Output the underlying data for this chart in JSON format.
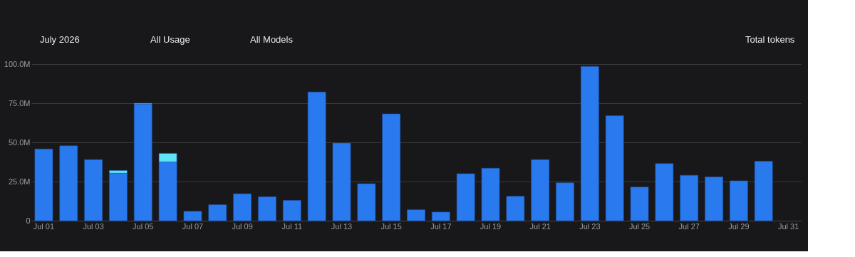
{
  "chart_data": {
    "type": "bar",
    "stacked": true,
    "categories": [
      "Jul 01",
      null,
      "Jul 03",
      null,
      "Jul 05",
      null,
      "Jul 07",
      null,
      "Jul 09",
      null,
      "Jul 11",
      null,
      "Jul 13",
      null,
      "Jul 15",
      null,
      "Jul 17",
      null,
      "Jul 19",
      null,
      "Jul 21",
      null,
      "Jul 23",
      null,
      "Jul 25",
      null,
      "Jul 27",
      null,
      "Jul 29",
      null,
      "Jul 31"
    ],
    "series": [
      {
        "color": "#2a7aef",
        "values": [
          45.8,
          47.8,
          39,
          30.3,
          74.5,
          37.5,
          6,
          10.2,
          17.2,
          15.3,
          13,
          82.2,
          49.5,
          23.6,
          68.2,
          7,
          5.5,
          30,
          33.5,
          15.6,
          39,
          24.2,
          98.5,
          67,
          21.5,
          36.5,
          29,
          28,
          25.5,
          38,
          null
        ]
      },
      {
        "color": "#5ce4f5",
        "values": [
          null,
          null,
          null,
          1.8,
          0.5,
          5.5,
          null,
          null,
          null,
          null,
          null,
          null,
          null,
          null,
          null,
          null,
          null,
          null,
          null,
          null,
          null,
          null,
          null,
          null,
          null,
          null,
          null,
          null,
          null,
          null,
          null
        ]
      }
    ],
    "ylim": [
      0,
      100
    ],
    "yticks": [
      0,
      {
        "value": 25,
        "label": "25.0M"
      },
      {
        "value": 50,
        "label": "50.0M"
      },
      {
        "value": 75,
        "label": "75.0M"
      },
      {
        "value": 100,
        "label": "100.0M"
      }
    ],
    "grid": "y",
    "legend": false,
    "annotations": [
      "July 2026",
      "All Usage",
      "All Models",
      "Total tokens"
    ]
  }
}
